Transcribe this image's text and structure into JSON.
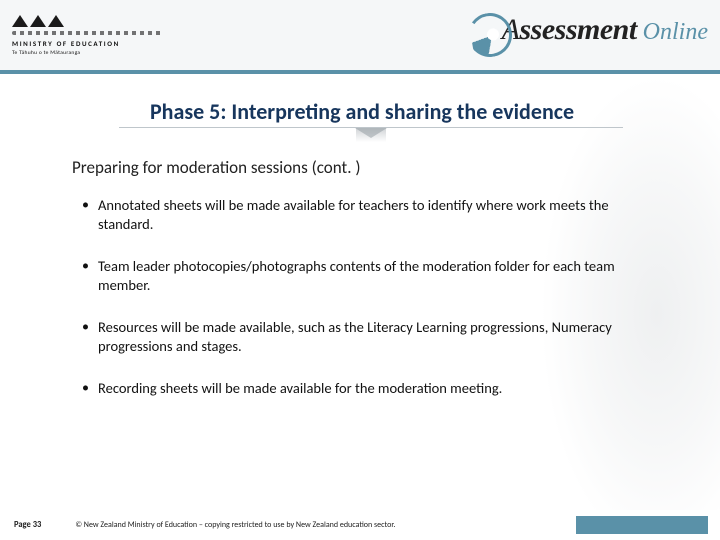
{
  "header": {
    "moe_label": "MINISTRY OF EDUCATION",
    "moe_sub": "Te Tāhuhu o te Mātauranga",
    "brand_left": "A",
    "brand_bold": "ssessment",
    "brand_right": "Online"
  },
  "title": "Phase 5: Interpreting and sharing the evidence",
  "subtitle": "Preparing for moderation sessions (cont. )",
  "bullets": [
    "Annotated sheets will be made available for teachers to identify where work meets the standard.",
    "Team leader photocopies/photographs contents of the moderation folder for each team member.",
    "Resources will be made available, such as the Literacy Learning progressions, Numeracy progressions and stages.",
    "Recording sheets will be made available for the moderation meeting."
  ],
  "footer": {
    "page": "Page 33",
    "copyright": "© New Zealand Ministry of Education – copying restricted to use by New Zealand education sector."
  },
  "colors": {
    "accent": "#5a91a8",
    "title_color": "#17365d",
    "header_bg": "#f5f7f8",
    "text": "#111111"
  }
}
